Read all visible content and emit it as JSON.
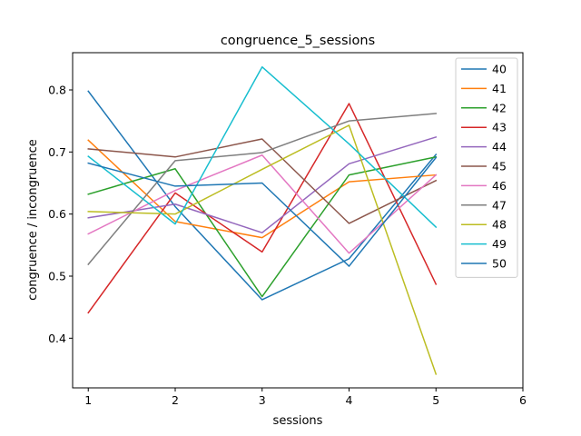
{
  "chart_data": {
    "type": "line",
    "title": "congruence_5_sessions",
    "xlabel": "sessions",
    "ylabel": "congruence / incongruence",
    "xlim": [
      0.82,
      6.0
    ],
    "ylim": [
      0.32,
      0.86
    ],
    "xticks": [
      1,
      2,
      3,
      4,
      5,
      6
    ],
    "yticks": [
      0.4,
      0.5,
      0.6,
      0.7,
      0.8
    ],
    "ytick_labels": [
      "0.4",
      "0.5",
      "0.6",
      "0.7",
      "0.8"
    ],
    "legend_position": "top-right",
    "grid": false,
    "x": [
      1,
      2,
      3,
      4,
      5
    ],
    "series": [
      {
        "name": "40",
        "color": "#1f77b4",
        "values": [
          0.798,
          0.612,
          0.462,
          0.528,
          0.696
        ]
      },
      {
        "name": "41",
        "color": "#ff7f0e",
        "values": [
          0.719,
          0.588,
          0.562,
          0.652,
          0.663
        ]
      },
      {
        "name": "42",
        "color": "#2ca02c",
        "values": [
          0.632,
          0.673,
          0.467,
          0.663,
          0.692
        ]
      },
      {
        "name": "43",
        "color": "#d62728",
        "values": [
          0.441,
          0.634,
          0.539,
          0.778,
          0.487
        ]
      },
      {
        "name": "44",
        "color": "#9467bd",
        "values": [
          0.594,
          0.616,
          0.57,
          0.681,
          0.724
        ]
      },
      {
        "name": "45",
        "color": "#8c564b",
        "values": [
          0.705,
          0.692,
          0.721,
          0.585,
          0.654
        ]
      },
      {
        "name": "46",
        "color": "#e377c2",
        "values": [
          0.568,
          0.638,
          0.695,
          0.537,
          0.663
        ]
      },
      {
        "name": "47",
        "color": "#7f7f7f",
        "values": [
          0.519,
          0.686,
          0.699,
          0.75,
          0.762
        ]
      },
      {
        "name": "48",
        "color": "#bcbd22",
        "values": [
          0.604,
          0.6,
          0.672,
          0.743,
          0.342
        ]
      },
      {
        "name": "49",
        "color": "#17becf",
        "values": [
          0.693,
          0.584,
          0.837,
          0.713,
          0.579
        ]
      },
      {
        "name": "50",
        "color": "#1f77b4",
        "values": [
          0.682,
          0.645,
          0.65,
          0.516,
          0.691
        ]
      }
    ]
  }
}
